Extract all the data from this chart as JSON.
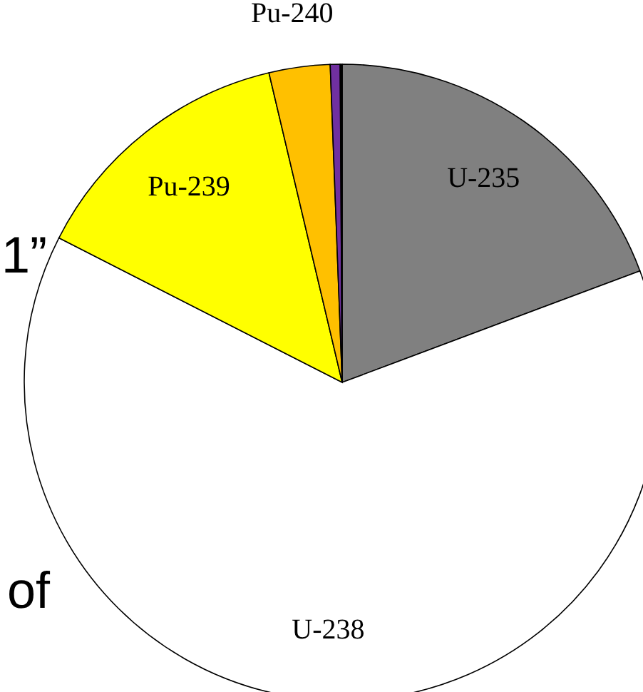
{
  "chart_data": {
    "type": "pie",
    "categories": [
      "U-235",
      "U-238",
      "Pu-239",
      "Pu-240",
      null,
      null
    ],
    "values": [
      19.3,
      63.2,
      13.8,
      3.1,
      0.5,
      0.1
    ],
    "colors": [
      "#808080",
      "#ffffff",
      "#ffff00",
      "#ffc000",
      "#7030a0",
      "#000000"
    ],
    "annotations": [
      "1”",
      "of"
    ]
  }
}
